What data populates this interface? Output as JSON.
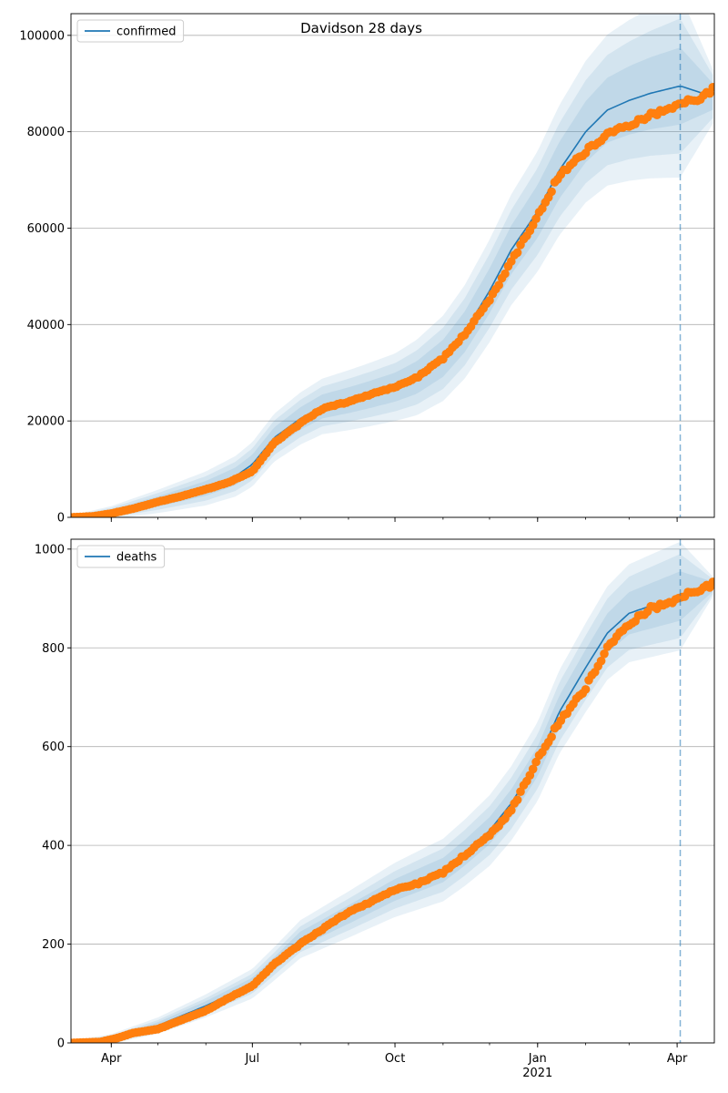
{
  "figure": {
    "title": "Davidson 28 days"
  },
  "colors": {
    "model": "#1f77b4",
    "observed": "#ff7f0e",
    "band": "#1f77b4",
    "grid": "#b0b0b0",
    "forecast_line": "#1f77b4"
  },
  "chart_data": [
    {
      "type": "line",
      "title": "Davidson 28 days",
      "series_name": "confirmed",
      "legend_position": "top-left",
      "grid_y": true,
      "x_range": [
        "2020-03-06",
        "2021-04-25"
      ],
      "ylim": [
        0,
        104500
      ],
      "y_ticks": [
        0,
        20000,
        40000,
        60000,
        80000,
        100000
      ],
      "x_ticks": [
        {
          "date": "2020-04-01",
          "label": "Apr",
          "sub": ""
        },
        {
          "date": "2020-07-01",
          "label": "Jul",
          "sub": ""
        },
        {
          "date": "2020-10-01",
          "label": "Oct",
          "sub": ""
        },
        {
          "date": "2021-01-01",
          "label": "Jan",
          "sub": "2021"
        },
        {
          "date": "2021-04-01",
          "label": "Apr",
          "sub": ""
        }
      ],
      "forecast_start": "2021-04-03",
      "model": {
        "dates": [
          "2020-03-06",
          "2020-04-01",
          "2020-05-01",
          "2020-06-01",
          "2020-06-20",
          "2020-07-01",
          "2020-07-15",
          "2020-08-01",
          "2020-08-15",
          "2020-09-01",
          "2020-09-15",
          "2020-10-01",
          "2020-10-15",
          "2020-11-01",
          "2020-11-15",
          "2020-12-01",
          "2020-12-15",
          "2021-01-01",
          "2021-01-15",
          "2021-02-01",
          "2021-02-15",
          "2021-03-01",
          "2021-03-15",
          "2021-04-03",
          "2021-04-25"
        ],
        "values": [
          0,
          1000,
          3300,
          6000,
          8500,
          11000,
          16500,
          20500,
          23000,
          24300,
          25500,
          27000,
          29000,
          33000,
          38500,
          47000,
          55500,
          63500,
          72000,
          80000,
          84500,
          86500,
          88000,
          89500,
          87200
        ]
      },
      "band_widths": [
        {
          "dates": [
            "2020-03-06",
            "2020-07-01",
            "2020-10-01",
            "2021-01-01",
            "2021-04-03",
            "2021-04-25"
          ],
          "half": [
            200,
            2000,
            3000,
            5500,
            8000,
            2500
          ]
        },
        {
          "dates": [
            "2020-03-06",
            "2020-07-01",
            "2020-10-01",
            "2021-01-01",
            "2021-04-03",
            "2021-04-25"
          ],
          "half": [
            300,
            3300,
            5000,
            9000,
            14000,
            4000
          ]
        },
        {
          "dates": [
            "2020-03-06",
            "2020-07-01",
            "2020-10-01",
            "2021-01-01",
            "2021-04-03",
            "2021-04-25"
          ],
          "half": [
            400,
            4600,
            7000,
            12500,
            19000,
            5000
          ]
        }
      ],
      "observed": {
        "dates": [
          "2020-03-06",
          "2020-03-20",
          "2020-04-01",
          "2020-04-15",
          "2020-05-01",
          "2020-05-15",
          "2020-06-01",
          "2020-06-15",
          "2020-07-01",
          "2020-07-15",
          "2020-08-01",
          "2020-08-15",
          "2020-09-01",
          "2020-09-15",
          "2020-10-01",
          "2020-10-15",
          "2020-11-01",
          "2020-11-15",
          "2020-12-01",
          "2020-12-15",
          "2021-01-01",
          "2021-01-15",
          "2021-02-01",
          "2021-02-15",
          "2021-03-01",
          "2021-03-15",
          "2021-04-01",
          "2021-04-15",
          "2021-04-25"
        ],
        "values": [
          0,
          200,
          800,
          1800,
          3200,
          4300,
          5800,
          7200,
          9500,
          15500,
          19500,
          22500,
          24000,
          25500,
          27000,
          29000,
          33000,
          38000,
          45000,
          53000,
          62500,
          71000,
          76000,
          79500,
          81500,
          83500,
          85500,
          87000,
          89000
        ]
      }
    },
    {
      "type": "line",
      "title": "",
      "series_name": "deaths",
      "legend_position": "top-left",
      "grid_y": true,
      "x_range": [
        "2020-03-06",
        "2021-04-25"
      ],
      "ylim": [
        0,
        1020
      ],
      "y_ticks": [
        0,
        200,
        400,
        600,
        800,
        1000
      ],
      "x_ticks": [
        {
          "date": "2020-04-01",
          "label": "Apr",
          "sub": ""
        },
        {
          "date": "2020-07-01",
          "label": "Jul",
          "sub": ""
        },
        {
          "date": "2020-10-01",
          "label": "Oct",
          "sub": ""
        },
        {
          "date": "2021-01-01",
          "label": "Jan",
          "sub": "2021"
        },
        {
          "date": "2021-04-01",
          "label": "Apr",
          "sub": ""
        }
      ],
      "forecast_start": "2021-04-03",
      "model": {
        "dates": [
          "2020-03-06",
          "2020-04-01",
          "2020-05-01",
          "2020-06-01",
          "2020-07-01",
          "2020-07-15",
          "2020-08-01",
          "2020-09-01",
          "2020-10-01",
          "2020-11-01",
          "2020-11-15",
          "2020-12-01",
          "2020-12-15",
          "2021-01-01",
          "2021-01-15",
          "2021-02-01",
          "2021-02-15",
          "2021-03-01",
          "2021-03-15",
          "2021-04-03",
          "2021-04-25"
        ],
        "values": [
          0,
          8,
          35,
          75,
          120,
          160,
          210,
          260,
          310,
          350,
          385,
          430,
          485,
          570,
          670,
          760,
          830,
          870,
          885,
          905,
          925
        ]
      },
      "band_widths": [
        {
          "dates": [
            "2020-03-06",
            "2020-07-01",
            "2020-10-01",
            "2021-01-01",
            "2021-04-03",
            "2021-04-25"
          ],
          "half": [
            2,
            12,
            22,
            30,
            50,
            8
          ]
        },
        {
          "dates": [
            "2020-03-06",
            "2020-07-01",
            "2020-10-01",
            "2021-01-01",
            "2021-04-03",
            "2021-04-25"
          ],
          "half": [
            3,
            20,
            38,
            55,
            85,
            12
          ]
        },
        {
          "dates": [
            "2020-03-06",
            "2020-07-01",
            "2020-10-01",
            "2021-01-01",
            "2021-04-03",
            "2021-04-25"
          ],
          "half": [
            4,
            30,
            55,
            80,
            110,
            16
          ]
        }
      ],
      "observed": {
        "dates": [
          "2020-03-06",
          "2020-03-25",
          "2020-04-05",
          "2020-04-15",
          "2020-05-01",
          "2020-05-15",
          "2020-06-01",
          "2020-06-15",
          "2020-07-01",
          "2020-07-15",
          "2020-08-01",
          "2020-08-15",
          "2020-09-01",
          "2020-09-15",
          "2020-10-01",
          "2020-10-15",
          "2020-11-01",
          "2020-11-15",
          "2020-12-01",
          "2020-12-15",
          "2021-01-01",
          "2021-01-15",
          "2021-02-01",
          "2021-02-15",
          "2021-03-01",
          "2021-03-15",
          "2021-04-03",
          "2021-04-15",
          "2021-04-25"
        ],
        "values": [
          0,
          2,
          10,
          20,
          28,
          45,
          65,
          90,
          115,
          160,
          200,
          230,
          265,
          285,
          310,
          322,
          345,
          380,
          420,
          470,
          575,
          650,
          720,
          800,
          850,
          880,
          900,
          920,
          930
        ]
      }
    }
  ]
}
